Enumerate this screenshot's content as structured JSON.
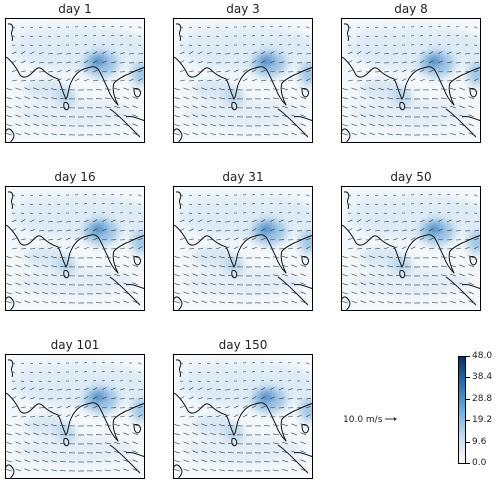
{
  "panels": [
    {
      "title": "day 1"
    },
    {
      "title": "day 3"
    },
    {
      "title": "day 8"
    },
    {
      "title": "day 16"
    },
    {
      "title": "day 31"
    },
    {
      "title": "day 50"
    },
    {
      "title": "day 101"
    },
    {
      "title": "day 150"
    }
  ],
  "reference_vector": {
    "label": "10.0 m/s"
  },
  "colorbar": {
    "min": 0.0,
    "max": 48.0,
    "ticks": [
      "48.0",
      "38.4",
      "28.8",
      "19.2",
      "9.6",
      "0.0"
    ],
    "colors": [
      "#f7fbff",
      "#c6dbef",
      "#6baed6",
      "#2171b5",
      "#08306b"
    ]
  }
}
